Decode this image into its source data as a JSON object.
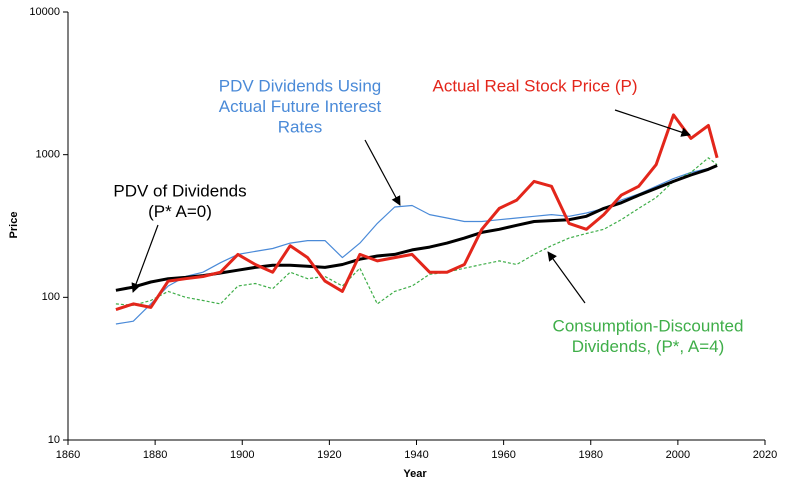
{
  "chart_data": {
    "type": "line",
    "log_y": true,
    "x_label": "Year",
    "y_label": "Price",
    "xlim": [
      1860,
      2020
    ],
    "xticks": [
      1860,
      1880,
      1900,
      1920,
      1940,
      1960,
      1980,
      2000,
      2020
    ],
    "ylim": [
      10,
      10000
    ],
    "yticks": [
      10,
      100,
      1000,
      10000
    ],
    "x": [
      1871,
      1875,
      1879,
      1883,
      1887,
      1891,
      1895,
      1899,
      1903,
      1907,
      1911,
      1915,
      1919,
      1923,
      1927,
      1931,
      1935,
      1939,
      1943,
      1947,
      1951,
      1955,
      1959,
      1963,
      1967,
      1971,
      1975,
      1979,
      1983,
      1987,
      1991,
      1995,
      1999,
      2003,
      2007,
      2009
    ],
    "series": [
      {
        "name": "PDV Dividends Using Actual Future Interest Rates",
        "color": "#4a8ad8",
        "width": 1.2,
        "dash": false,
        "values": [
          65,
          68,
          90,
          120,
          140,
          150,
          175,
          200,
          210,
          220,
          240,
          250,
          250,
          190,
          240,
          330,
          430,
          440,
          380,
          360,
          340,
          340,
          350,
          360,
          370,
          380,
          370,
          390,
          420,
          480,
          530,
          600,
          680,
          750,
          800,
          830
        ]
      },
      {
        "name": "Consumption-Discounted Dividends, (P*, A=4)",
        "color": "#3fae49",
        "width": 1.2,
        "dash": true,
        "values": [
          90,
          88,
          95,
          110,
          100,
          95,
          90,
          120,
          125,
          115,
          150,
          135,
          140,
          120,
          160,
          90,
          110,
          120,
          145,
          150,
          160,
          170,
          180,
          170,
          200,
          230,
          260,
          280,
          300,
          350,
          420,
          500,
          650,
          750,
          950,
          850
        ]
      },
      {
        "name": "PDV of Dividends (P* A=0)",
        "color": "#000000",
        "width": 3,
        "dash": false,
        "values": [
          112,
          118,
          128,
          135,
          138,
          142,
          148,
          155,
          162,
          168,
          168,
          165,
          162,
          170,
          185,
          195,
          200,
          215,
          225,
          240,
          260,
          285,
          300,
          320,
          340,
          345,
          350,
          370,
          420,
          460,
          520,
          580,
          650,
          720,
          790,
          840
        ]
      },
      {
        "name": "Actual Real Stock Price (P)",
        "color": "#e3261b",
        "width": 3,
        "dash": false,
        "values": [
          82,
          90,
          85,
          130,
          135,
          140,
          150,
          200,
          170,
          150,
          230,
          190,
          130,
          110,
          200,
          180,
          190,
          200,
          150,
          150,
          170,
          300,
          420,
          480,
          650,
          600,
          330,
          300,
          380,
          520,
          600,
          850,
          1900,
          1300,
          1600,
          950
        ]
      }
    ],
    "annotations": [
      {
        "text": [
          "PDV Dividends Using",
          "Actual Future Interest",
          "Rates"
        ],
        "color": "#4a8ad8"
      },
      {
        "text": [
          "Actual Real Stock Price (P)"
        ],
        "color": "#e3261b"
      },
      {
        "text": [
          "PDV of Dividends",
          "(P* A=0)"
        ],
        "color": "#000000"
      },
      {
        "text": [
          "Consumption-Discounted",
          "Dividends, (P*, A=4)"
        ],
        "color": "#3fae49"
      }
    ]
  }
}
